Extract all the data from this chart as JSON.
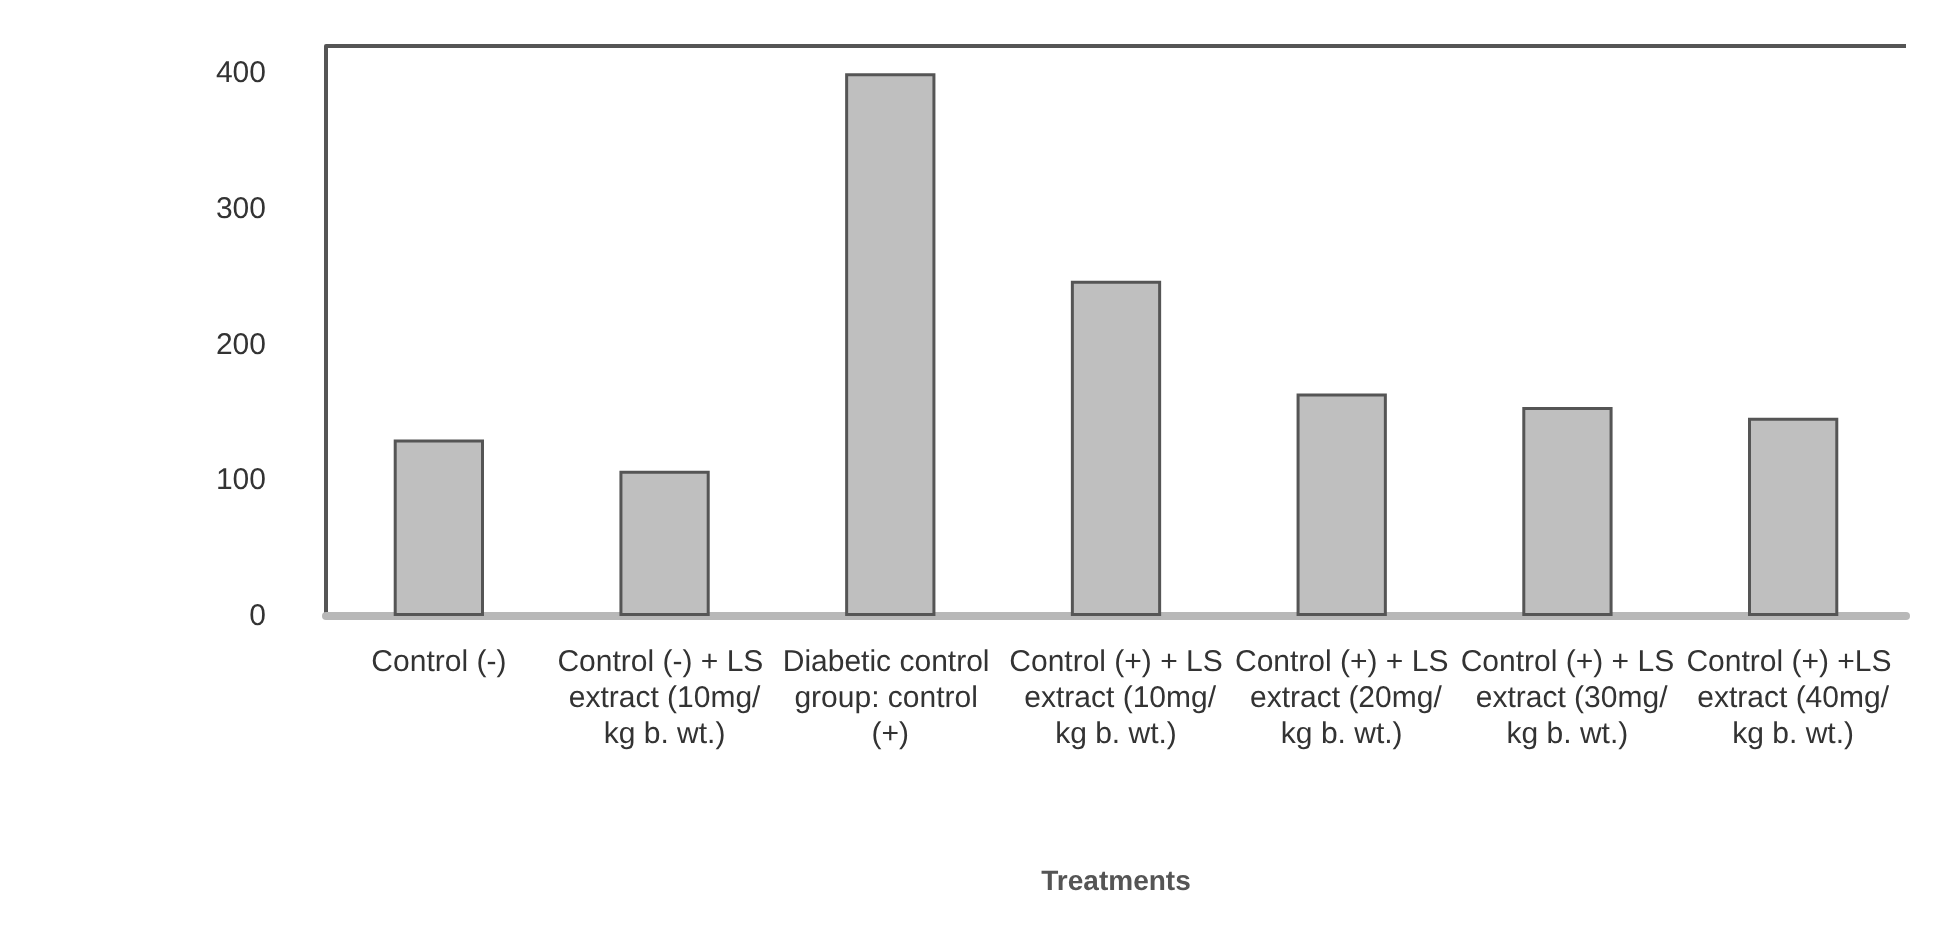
{
  "chart_data": {
    "type": "bar",
    "xlabel": "Treatments",
    "categories": [
      "Control (-)",
      "Control (-) + LS extract (10mg/kg b. wt.)",
      "Diabetic control group: control (+)",
      "Control (+) + LS extract (10mg/kg b. wt.)",
      "Control (+) + LS extract (20mg/kg b. wt.)",
      "Control (+) + LS extract (30mg/kg b. wt.)",
      "Control (+) +LS extract (40mg/kg b. wt.)"
    ],
    "values": [
      130,
      107,
      400,
      247,
      164,
      154,
      146
    ],
    "color": "#bfbfbf",
    "ylim": [
      0,
      420
    ],
    "yticks": [
      0,
      100,
      200,
      300,
      400
    ],
    "grid": false
  }
}
